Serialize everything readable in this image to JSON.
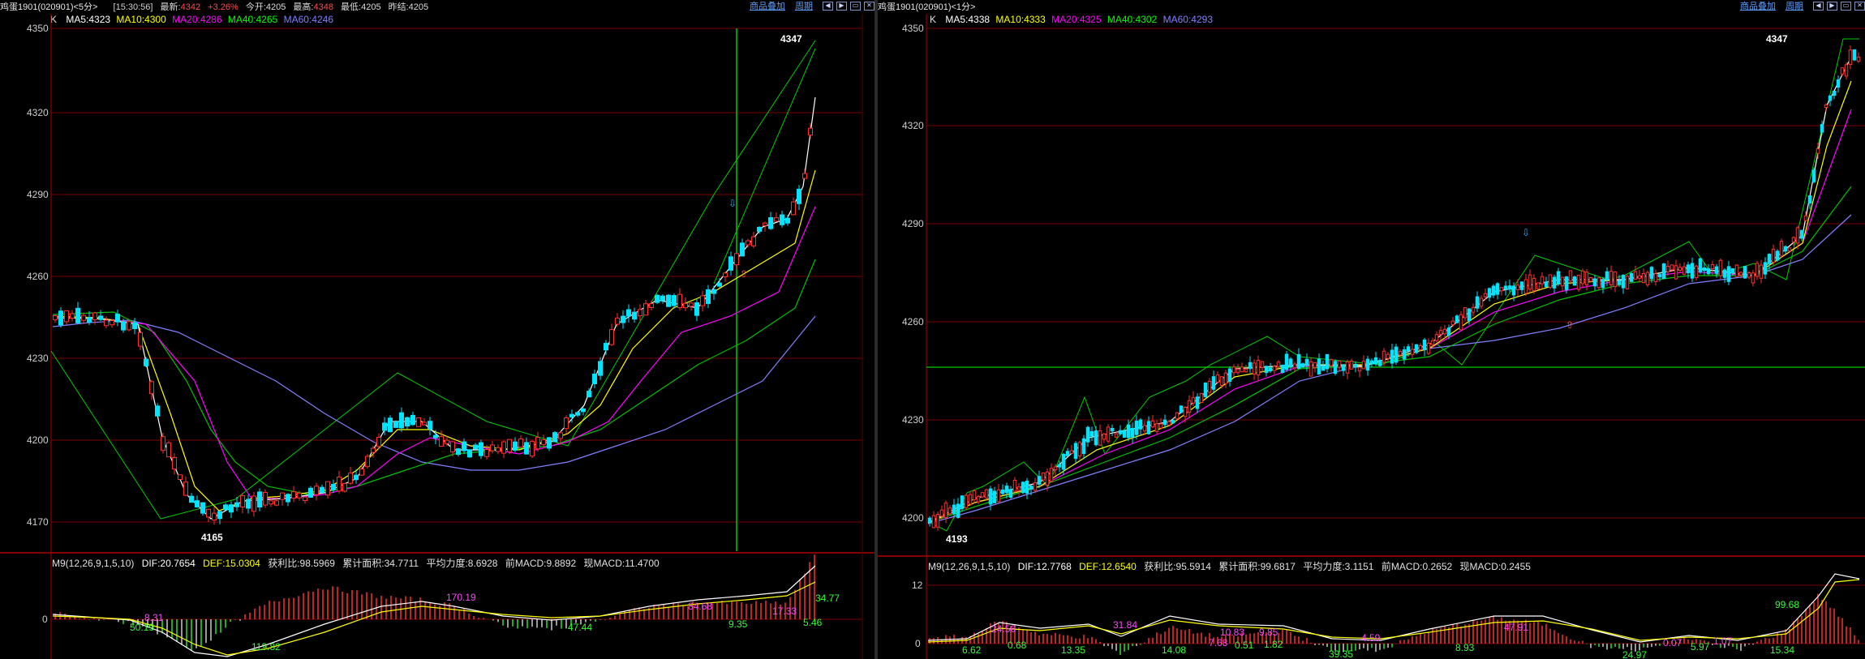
{
  "left": {
    "title": "鸡蛋1901(020901)<5分>",
    "time": "[15:30:56]",
    "latest_label": "最新:",
    "latest_value": "4342",
    "change": "+3.26%",
    "open": "今开:4205",
    "high_label": "最高:",
    "high_value": "4348",
    "low": "最低:4205",
    "prev_settle": "昨结:4205",
    "overlay_link": "商品叠加",
    "period_link": "周期",
    "ma": {
      "k": "K",
      "ma5": "MA5:4323",
      "ma10": "MA10:4300",
      "ma20": "MA20:4286",
      "ma40": "MA40:4265",
      "ma60": "MA60:4246"
    },
    "macd": {
      "params": "M9(12,26,9,1,5,10)",
      "dif": "DIF:20.7654",
      "def": "DEF:15.0304",
      "profit_ratio": "获利比:98.5969",
      "cum_area": "累计面积:34.7711",
      "avg_strength": "平均力度:8.6928",
      "prev_macd": "前MACD:9.8892",
      "cur_macd": "现MACD:11.4700"
    },
    "price_ticks": [
      "4350",
      "4320",
      "4290",
      "4260",
      "4230",
      "4200",
      "4170"
    ],
    "macd_ticks": [
      "0"
    ],
    "high_mark": "4347",
    "low_mark": "4165",
    "macd_labels": [
      "8.31",
      "50.19",
      "119.82",
      "170.19",
      "47.44",
      "84.68",
      "9.35",
      "17.33",
      "5.46",
      "34.77"
    ]
  },
  "right": {
    "title": "鸡蛋1901(020901)<1分>",
    "overlay_link": "商品叠加",
    "period_link": "周期",
    "ma": {
      "k": "K",
      "ma5": "MA5:4338",
      "ma10": "MA10:4333",
      "ma20": "MA20:4325",
      "ma40": "MA40:4302",
      "ma60": "MA60:4293"
    },
    "macd": {
      "params": "M9(12,26,9,1,5,10)",
      "dif": "DIF:12.7768",
      "def": "DEF:12.6540",
      "profit_ratio": "获利比:95.5914",
      "cum_area": "累计面积:99.6817",
      "avg_strength": "平均力度:3.1151",
      "prev_macd": "前MACD:0.2652",
      "cur_macd": "现MACD:0.2455"
    },
    "price_ticks": [
      "4350",
      "4320",
      "4290",
      "4260",
      "4230",
      "4200"
    ],
    "macd_ticks": [
      "12",
      "0"
    ],
    "high_mark": "4347",
    "low_mark": "4193",
    "macd_labels": [
      "24.56",
      "31.84",
      "10.83",
      "9.85",
      "47.91",
      "99.68",
      "6.62",
      "0.68",
      "13.35",
      "14.08",
      "7.68",
      "0.51",
      "1.82",
      "39.35",
      "4.59",
      "8.93",
      "24.97",
      "0.07",
      "5.97",
      "1.07",
      "15.34"
    ]
  },
  "colors": {
    "ma5": "#ffffff",
    "ma10": "#ffff00",
    "ma20": "#ff00ff",
    "ma40": "#00ff00",
    "ma60": "#8080ff",
    "up": "#ff3030",
    "down": "#00e5ff",
    "grid": "#8b0000",
    "axis": "#b00000"
  }
}
